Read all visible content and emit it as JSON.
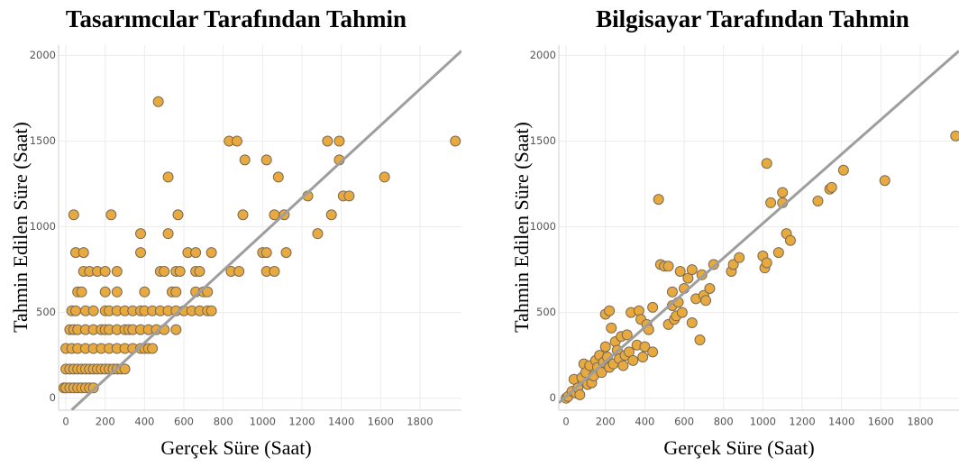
{
  "chart_data": [
    {
      "type": "scatter",
      "title": "Tasarımcılar Tarafından Tahmin",
      "x_label": "Gerçek Süre (Saat)",
      "y_label": "Tahmin Edilen Süre (Saat)",
      "color": "#e8a93f",
      "grid": true,
      "xlim": [
        -37,
        2011
      ],
      "ylim": [
        -70,
        2060
      ],
      "xticks": [
        0,
        200,
        400,
        600,
        800,
        1000,
        1200,
        1400,
        1600,
        1800
      ],
      "yticks": [
        0,
        500,
        1000,
        1500,
        2000
      ],
      "reference_line": {
        "x": [
          30,
          2011
        ],
        "y": [
          -68,
          2026
        ]
      },
      "x": [
        -10,
        0,
        20,
        40,
        60,
        80,
        100,
        120,
        140,
        0,
        20,
        40,
        60,
        80,
        100,
        120,
        140,
        160,
        180,
        200,
        220,
        240,
        260,
        280,
        300,
        0,
        30,
        60,
        100,
        140,
        180,
        220,
        260,
        300,
        340,
        380,
        400,
        420,
        440,
        20,
        40,
        60,
        100,
        140,
        180,
        200,
        220,
        260,
        300,
        320,
        340,
        380,
        420,
        460,
        500,
        560,
        30,
        50,
        100,
        140,
        200,
        220,
        260,
        300,
        340,
        380,
        400,
        440,
        480,
        520,
        560,
        600,
        640,
        680,
        720,
        740,
        60,
        80,
        200,
        260,
        400,
        540,
        560,
        660,
        700,
        720,
        90,
        120,
        160,
        200,
        260,
        480,
        500,
        560,
        580,
        660,
        680,
        840,
        880,
        1020,
        1060,
        50,
        90,
        380,
        620,
        660,
        740,
        1000,
        1020,
        1120,
        380,
        520,
        1280,
        40,
        230,
        570,
        900,
        1060,
        1110,
        1350,
        1230,
        1410,
        1440,
        520,
        1080,
        1620,
        910,
        1020,
        1390,
        830,
        870,
        1330,
        1390,
        1980,
        470
      ],
      "values": [
        60,
        60,
        60,
        60,
        60,
        60,
        60,
        60,
        60,
        170,
        170,
        170,
        170,
        170,
        170,
        170,
        170,
        170,
        170,
        170,
        170,
        170,
        170,
        170,
        170,
        290,
        290,
        290,
        290,
        290,
        290,
        290,
        290,
        290,
        290,
        290,
        290,
        290,
        290,
        400,
        400,
        400,
        400,
        400,
        400,
        400,
        400,
        400,
        400,
        400,
        400,
        400,
        400,
        400,
        400,
        400,
        510,
        510,
        510,
        510,
        510,
        510,
        510,
        510,
        510,
        510,
        510,
        510,
        510,
        510,
        510,
        510,
        510,
        510,
        510,
        510,
        620,
        620,
        620,
        620,
        620,
        620,
        620,
        620,
        620,
        620,
        740,
        740,
        740,
        740,
        740,
        740,
        740,
        740,
        740,
        740,
        740,
        740,
        740,
        740,
        740,
        850,
        850,
        850,
        850,
        850,
        850,
        850,
        850,
        850,
        960,
        960,
        960,
        1070,
        1070,
        1070,
        1070,
        1070,
        1070,
        1070,
        1180,
        1180,
        1180,
        1290,
        1290,
        1290,
        1390,
        1390,
        1390,
        1500,
        1500,
        1500,
        1500,
        1500,
        1730
      ]
    },
    {
      "type": "scatter",
      "title": "Bilgisayar Tarafından Tahmin",
      "x_label": "Gerçek Süre (Saat)",
      "y_label": "Tahmin Edilen Süre (Saat)",
      "color": "#e8a93f",
      "grid": true,
      "xlim": [
        -37,
        1997
      ],
      "ylim": [
        -70,
        2060
      ],
      "xticks": [
        0,
        200,
        400,
        600,
        800,
        1000,
        1200,
        1400,
        1600,
        1800
      ],
      "yticks": [
        0,
        500,
        1000,
        1500,
        2000
      ],
      "reference_line": {
        "x": [
          -37,
          1997
        ],
        "y": [
          -27,
          2026
        ]
      },
      "x": [
        0,
        10,
        30,
        40,
        50,
        60,
        70,
        80,
        90,
        100,
        110,
        120,
        130,
        140,
        150,
        160,
        170,
        180,
        190,
        200,
        200,
        210,
        220,
        220,
        230,
        240,
        250,
        260,
        270,
        280,
        290,
        300,
        310,
        320,
        330,
        340,
        360,
        370,
        380,
        390,
        400,
        410,
        420,
        440,
        440,
        470,
        480,
        500,
        520,
        520,
        540,
        540,
        550,
        560,
        570,
        580,
        590,
        600,
        620,
        640,
        640,
        660,
        680,
        690,
        700,
        710,
        730,
        750,
        840,
        850,
        880,
        1000,
        1010,
        1020,
        1020,
        1040,
        1080,
        1100,
        1100,
        1120,
        1140,
        1280,
        1340,
        1350,
        1410,
        1620,
        1980
      ],
      "values": [
        0,
        10,
        40,
        110,
        30,
        60,
        20,
        120,
        200,
        150,
        80,
        190,
        90,
        130,
        220,
        180,
        250,
        150,
        210,
        300,
        490,
        240,
        510,
        180,
        410,
        200,
        330,
        280,
        230,
        360,
        190,
        250,
        370,
        270,
        500,
        220,
        310,
        510,
        460,
        240,
        300,
        430,
        400,
        270,
        530,
        1160,
        780,
        770,
        430,
        770,
        620,
        540,
        460,
        480,
        560,
        740,
        500,
        640,
        700,
        440,
        750,
        580,
        340,
        720,
        600,
        570,
        640,
        780,
        740,
        780,
        820,
        830,
        760,
        1370,
        790,
        1140,
        850,
        1140,
        1200,
        960,
        920,
        1150,
        1220,
        1230,
        1330,
        1270,
        1530
      ]
    }
  ]
}
